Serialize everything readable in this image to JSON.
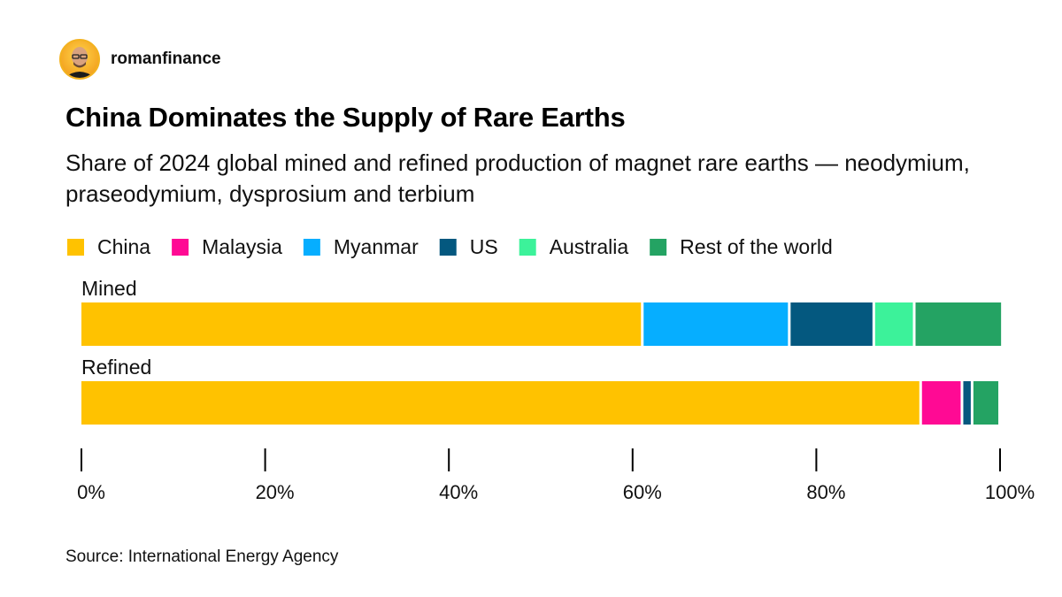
{
  "brand": {
    "handle": "romanfinance",
    "avatar_icon": "profile-photo"
  },
  "title": "China Dominates the Supply of Rare Earths",
  "subtitle": "Share of 2024 global mined and refined production of magnet rare earths — neodymium, praseodymium, dysprosium and terbium",
  "source": "Source: International Energy Agency",
  "chart_data": {
    "type": "bar",
    "orientation": "horizontal",
    "stacked": true,
    "categories": [
      "Mined",
      "Refined"
    ],
    "series": [
      {
        "name": "China",
        "color": "#ffc200",
        "values": [
          61.2,
          91.5
        ]
      },
      {
        "name": "Malaysia",
        "color": "#ff0a94",
        "values": [
          0,
          4.5
        ]
      },
      {
        "name": "Myanmar",
        "color": "#06aeff",
        "values": [
          16.0,
          0
        ]
      },
      {
        "name": "US",
        "color": "#04587f",
        "values": [
          9.2,
          1.1
        ]
      },
      {
        "name": "Australia",
        "color": "#3cf29a",
        "values": [
          4.4,
          0
        ]
      },
      {
        "name": "Rest of the world",
        "color": "#24a363",
        "values": [
          9.6,
          3.0
        ]
      }
    ],
    "xlim": [
      0,
      100
    ],
    "xticks": [
      "0%",
      "20%",
      "40%",
      "60%",
      "80%",
      "100%"
    ],
    "legend_position": "top-left",
    "grid": false
  }
}
